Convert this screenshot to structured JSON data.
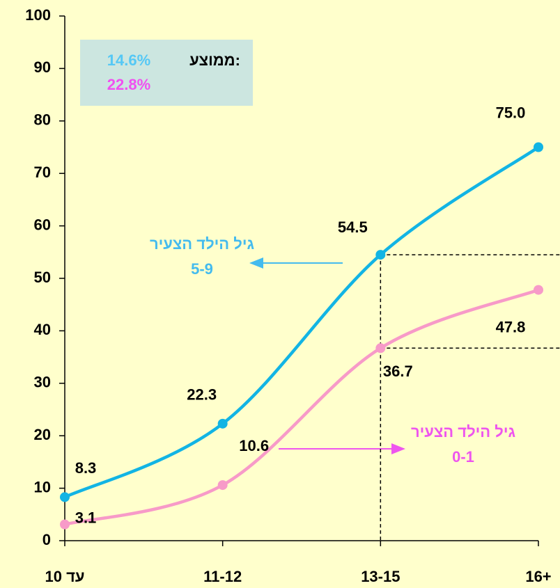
{
  "chart_data": {
    "type": "line",
    "categories": [
      "עד 10",
      "11-12",
      "13-15",
      "16+"
    ],
    "series": [
      {
        "color": "#12b4e4",
        "values": [
          8.3,
          22.3,
          54.5,
          75.0
        ],
        "value_labels": [
          "8.3",
          "22.3",
          "54.5",
          "75.0"
        ]
      },
      {
        "color": "#f79ac8",
        "values": [
          3.1,
          10.6,
          36.7,
          47.8
        ],
        "value_labels": [
          "3.1",
          "10.6",
          "36.7",
          "47.8"
        ]
      }
    ],
    "ylim": [
      0,
      100
    ],
    "yticks": [
      0,
      10,
      20,
      30,
      40,
      50,
      60,
      70,
      80,
      90,
      100
    ],
    "average": {
      "label": "ממוצע:",
      "values": [
        14.6,
        22.8
      ],
      "value_labels": [
        "14.6%",
        "22.8%"
      ],
      "colors": [
        "#55c8f5",
        "#f050f0"
      ]
    },
    "annotations": [
      {
        "lines": [
          "גיל הילד הצעיר",
          "5-9"
        ],
        "color": "#44bbee"
      },
      {
        "lines": [
          "גיל הילד הצעיר",
          "0-1"
        ],
        "color": "#ee55ee"
      }
    ]
  }
}
